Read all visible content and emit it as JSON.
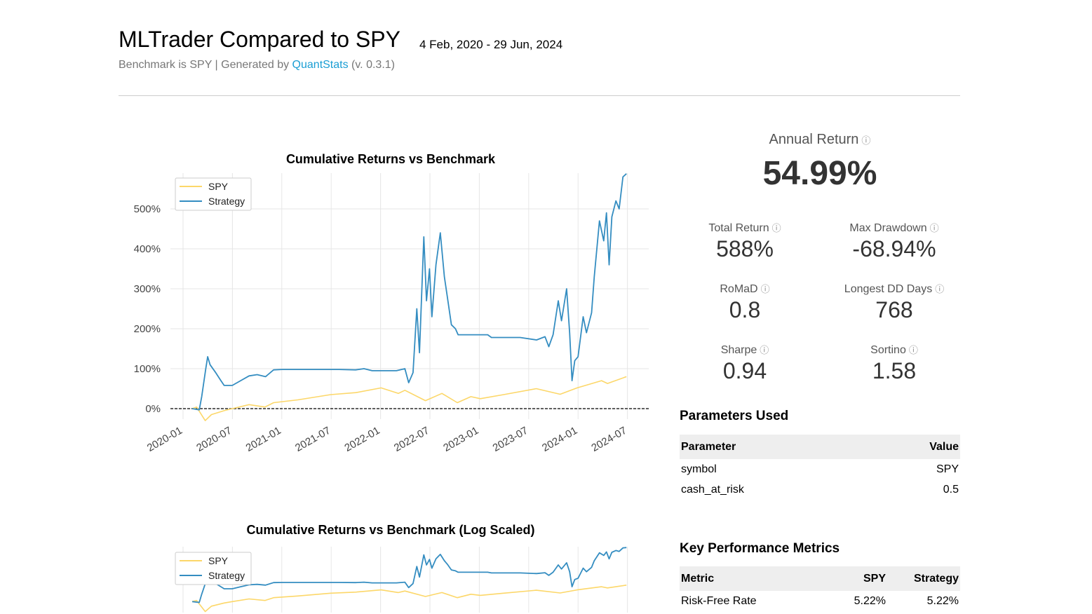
{
  "header": {
    "title": "MLTrader Compared to SPY",
    "date_range": "4 Feb, 2020 - 29 Jun, 2024",
    "subtitle_prefix": "Benchmark is SPY | Generated by ",
    "subtitle_link": "QuantStats",
    "subtitle_suffix": " (v. 0.3.1)"
  },
  "headline": {
    "label": "Annual Return",
    "value": "54.99%",
    "info_icon": "info-circle-icon"
  },
  "metrics": [
    {
      "label": "Total Return",
      "value": "588%"
    },
    {
      "label": "Max Drawdown",
      "value": "-68.94%"
    },
    {
      "label": "RoMaD",
      "value": "0.8"
    },
    {
      "label": "Longest DD Days",
      "value": "768"
    },
    {
      "label": "Sharpe",
      "value": "0.94"
    },
    {
      "label": "Sortino",
      "value": "1.58"
    }
  ],
  "info_glyph": "ⓘ",
  "parameters": {
    "title": "Parameters Used",
    "headers": [
      "Parameter",
      "Value"
    ],
    "rows": [
      [
        "symbol",
        "SPY"
      ],
      [
        "cash_at_risk",
        "0.5"
      ]
    ]
  },
  "kpm": {
    "title": "Key Performance Metrics",
    "headers": [
      "Metric",
      "SPY",
      "Strategy"
    ],
    "rows": [
      [
        "Risk-Free Rate",
        "5.22%",
        "5.22%"
      ]
    ]
  },
  "colors": {
    "spy": "#fcd769",
    "strategy": "#348dc1",
    "link": "#1a9ed4"
  },
  "chart_data": [
    {
      "type": "line",
      "title": "Cumulative Returns vs Benchmark",
      "y_scale": "linear",
      "yticks": [
        "0%",
        "100%",
        "200%",
        "300%",
        "400%",
        "500%"
      ],
      "ytick_values": [
        0,
        100,
        200,
        300,
        400,
        500
      ],
      "xticks": [
        "2020-01",
        "2020-07",
        "2021-01",
        "2021-07",
        "2022-01",
        "2022-07",
        "2023-01",
        "2023-07",
        "2024-01",
        "2024-07"
      ],
      "legend": "top-left",
      "grid": true,
      "baseline": 0,
      "series": [
        {
          "name": "SPY",
          "color": "#fcd769",
          "points": [
            [
              "2020-02-04",
              0
            ],
            [
              "2020-02-20",
              4
            ],
            [
              "2020-03-23",
              -30
            ],
            [
              "2020-04-15",
              -15
            ],
            [
              "2020-06-01",
              -5
            ],
            [
              "2020-07-01",
              0
            ],
            [
              "2020-09-01",
              10
            ],
            [
              "2020-10-30",
              4
            ],
            [
              "2020-12-01",
              15
            ],
            [
              "2021-03-01",
              22
            ],
            [
              "2021-07-01",
              35
            ],
            [
              "2021-10-01",
              40
            ],
            [
              "2022-01-03",
              52
            ],
            [
              "2022-03-08",
              38
            ],
            [
              "2022-04-01",
              46
            ],
            [
              "2022-06-16",
              20
            ],
            [
              "2022-08-16",
              38
            ],
            [
              "2022-10-12",
              15
            ],
            [
              "2022-12-01",
              30
            ],
            [
              "2023-01-05",
              25
            ],
            [
              "2023-04-01",
              35
            ],
            [
              "2023-07-31",
              50
            ],
            [
              "2023-10-27",
              36
            ],
            [
              "2023-12-29",
              52
            ],
            [
              "2024-03-28",
              70
            ],
            [
              "2024-04-19",
              63
            ],
            [
              "2024-06-28",
              80
            ]
          ]
        },
        {
          "name": "Strategy",
          "color": "#348dc1",
          "points": [
            [
              "2020-02-04",
              0
            ],
            [
              "2020-03-01",
              -3
            ],
            [
              "2020-03-10",
              30
            ],
            [
              "2020-03-25",
              100
            ],
            [
              "2020-04-01",
              130
            ],
            [
              "2020-04-10",
              110
            ],
            [
              "2020-05-01",
              90
            ],
            [
              "2020-05-20",
              70
            ],
            [
              "2020-06-01",
              58
            ],
            [
              "2020-07-01",
              58
            ],
            [
              "2020-08-01",
              70
            ],
            [
              "2020-09-01",
              82
            ],
            [
              "2020-10-01",
              85
            ],
            [
              "2020-11-01",
              80
            ],
            [
              "2020-12-01",
              97
            ],
            [
              "2021-01-01",
              98
            ],
            [
              "2021-08-01",
              98
            ],
            [
              "2021-10-01",
              97
            ],
            [
              "2021-11-01",
              100
            ],
            [
              "2021-12-01",
              95
            ],
            [
              "2022-03-01",
              95
            ],
            [
              "2022-04-01",
              100
            ],
            [
              "2022-04-15",
              65
            ],
            [
              "2022-05-01",
              90
            ],
            [
              "2022-05-15",
              250
            ],
            [
              "2022-05-25",
              140
            ],
            [
              "2022-06-10",
              430
            ],
            [
              "2022-06-20",
              270
            ],
            [
              "2022-07-01",
              350
            ],
            [
              "2022-07-10",
              230
            ],
            [
              "2022-07-25",
              360
            ],
            [
              "2022-08-10",
              440
            ],
            [
              "2022-08-25",
              330
            ],
            [
              "2022-09-05",
              280
            ],
            [
              "2022-09-20",
              210
            ],
            [
              "2022-10-05",
              200
            ],
            [
              "2022-10-15",
              185
            ],
            [
              "2023-02-01",
              185
            ],
            [
              "2023-02-15",
              178
            ],
            [
              "2023-06-01",
              178
            ],
            [
              "2023-08-01",
              172
            ],
            [
              "2023-09-01",
              180
            ],
            [
              "2023-09-15",
              155
            ],
            [
              "2023-10-01",
              185
            ],
            [
              "2023-10-20",
              270
            ],
            [
              "2023-11-01",
              220
            ],
            [
              "2023-11-20",
              300
            ],
            [
              "2023-12-01",
              190
            ],
            [
              "2023-12-10",
              70
            ],
            [
              "2023-12-20",
              120
            ],
            [
              "2024-01-01",
              130
            ],
            [
              "2024-01-20",
              230
            ],
            [
              "2024-02-01",
              190
            ],
            [
              "2024-02-20",
              240
            ],
            [
              "2024-03-01",
              330
            ],
            [
              "2024-03-20",
              470
            ],
            [
              "2024-04-05",
              420
            ],
            [
              "2024-04-15",
              490
            ],
            [
              "2024-04-25",
              360
            ],
            [
              "2024-05-05",
              480
            ],
            [
              "2024-05-20",
              520
            ],
            [
              "2024-06-01",
              500
            ],
            [
              "2024-06-15",
              580
            ],
            [
              "2024-06-28",
              588
            ]
          ]
        }
      ]
    },
    {
      "type": "line",
      "title": "Cumulative Returns vs Benchmark (Log Scaled)",
      "y_scale": "log",
      "legend": "top-left",
      "grid": true,
      "series": [
        {
          "name": "SPY"
        },
        {
          "name": "Strategy"
        }
      ]
    }
  ]
}
